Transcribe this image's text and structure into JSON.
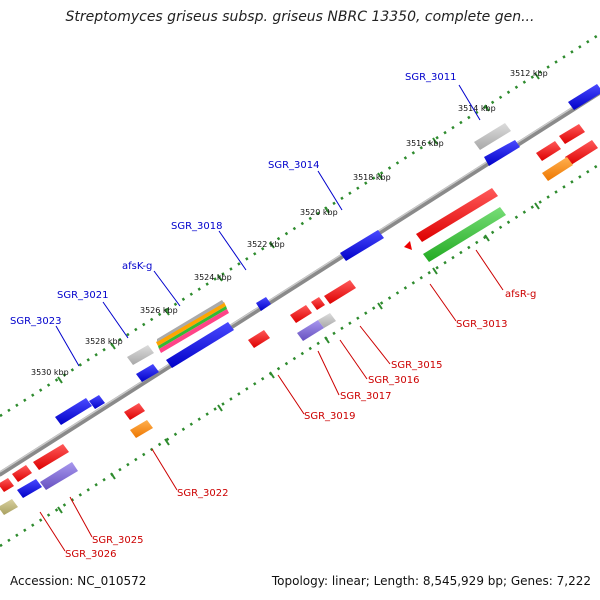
{
  "title": "Streptomyces griseus subsp. griseus NBRC 13350, complete gen...",
  "footer": {
    "accession": "Accession: NC_010572",
    "summary": "Topology: linear; Length: 8,545,929 bp; Genes: 7,222"
  },
  "colors": {
    "backbone": "#8a8a8a",
    "dotted_track": "#2e8b2e",
    "forward_label": "#0000cc",
    "reverse_label": "#cc0000",
    "blue": "#0000dd",
    "red": "#ee0000",
    "gray": "#b8b8b8",
    "green": "#33bb33",
    "orange": "#ff8800",
    "purple": "#7a66cc",
    "olive": "#b8b070"
  },
  "tick_labels": [
    "3512 kbp",
    "3514 kbp",
    "3516 kbp",
    "3518 kbp",
    "3520 kbp",
    "3522 kbp",
    "3524 kbp",
    "3526 kbp",
    "3528 kbp",
    "3530 kbp"
  ],
  "forward_gene_labels": [
    "SGR_3011",
    "SGR_3014",
    "SGR_3018",
    "afsK-g",
    "SGR_3021",
    "SGR_3023"
  ],
  "reverse_gene_labels": [
    "afsR-g",
    "SGR_3013",
    "SGR_3015",
    "SGR_3016",
    "SGR_3017",
    "SGR_3019",
    "SGR_3022",
    "SGR_3025",
    "SGR_3026"
  ]
}
